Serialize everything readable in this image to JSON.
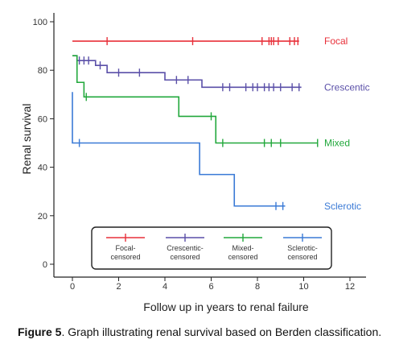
{
  "caption": {
    "label": "Figure 5",
    "text": ". Graph illustrating renal survival based on Berden classification."
  },
  "chart_data": {
    "type": "line",
    "subtype": "kaplan-meier step",
    "xlabel": "Follow up in years to renal failure",
    "ylabel": "Renal survival",
    "xlim": [
      0,
      12
    ],
    "ylim": [
      0,
      100
    ],
    "x_ticks": [
      "0",
      "2",
      "4",
      "6",
      "8",
      "10",
      "12"
    ],
    "y_ticks": [
      "0",
      "20",
      "40",
      "60",
      "80",
      "100"
    ],
    "grid": false,
    "series": [
      {
        "name": "Focal",
        "color": "#e8303a",
        "steps": [
          [
            0,
            92
          ],
          [
            9.8,
            92
          ]
        ],
        "censored": [
          1.5,
          5.2,
          8.2,
          8.5,
          8.6,
          8.7,
          8.9,
          9.4,
          9.6,
          9.75
        ]
      },
      {
        "name": "Crescentic",
        "color": "#5a4fa8",
        "steps": [
          [
            0,
            86
          ],
          [
            0.2,
            86
          ],
          [
            0.2,
            84
          ],
          [
            1.0,
            84
          ],
          [
            1.0,
            82
          ],
          [
            1.5,
            82
          ],
          [
            1.5,
            79
          ],
          [
            4.0,
            79
          ],
          [
            4.0,
            76
          ],
          [
            5.6,
            76
          ],
          [
            5.6,
            73
          ],
          [
            9.9,
            73
          ]
        ],
        "censored": [
          0.3,
          0.5,
          0.7,
          1.2,
          2.0,
          2.9,
          4.5,
          5.0,
          6.5,
          6.8,
          7.5,
          7.8,
          8.0,
          8.3,
          8.5,
          8.7,
          9.0,
          9.5,
          9.8
        ]
      },
      {
        "name": "Mixed",
        "color": "#22a83c",
        "steps": [
          [
            0,
            86
          ],
          [
            0.2,
            86
          ],
          [
            0.2,
            75
          ],
          [
            0.5,
            75
          ],
          [
            0.5,
            69
          ],
          [
            4.6,
            69
          ],
          [
            4.6,
            61
          ],
          [
            6.2,
            61
          ],
          [
            6.2,
            50
          ],
          [
            10.6,
            50
          ]
        ],
        "censored": [
          0.6,
          6.0,
          6.5,
          8.3,
          8.6,
          9.0,
          10.6
        ]
      },
      {
        "name": "Sclerotic",
        "color": "#3a7ad6",
        "steps": [
          [
            0,
            71
          ],
          [
            0,
            50
          ],
          [
            5.5,
            50
          ],
          [
            5.5,
            37
          ],
          [
            7.0,
            37
          ],
          [
            7.0,
            24
          ],
          [
            9.2,
            24
          ]
        ],
        "censored": [
          0.3,
          8.8,
          9.1
        ]
      }
    ],
    "series_labels": [
      "Focal",
      "Crescentic",
      "Mixed",
      "Sclerotic"
    ],
    "legend": {
      "placement": "bottom",
      "entries": [
        {
          "series": "Focal",
          "label_line1": "Focal-",
          "label_line2": "censored"
        },
        {
          "series": "Crescentic",
          "label_line1": "Crescentic-",
          "label_line2": "censored"
        },
        {
          "series": "Mixed",
          "label_line1": "Mixed-",
          "label_line2": "censored"
        },
        {
          "series": "Sclerotic",
          "label_line1": "Sclerotic-",
          "label_line2": "censored"
        }
      ]
    }
  }
}
